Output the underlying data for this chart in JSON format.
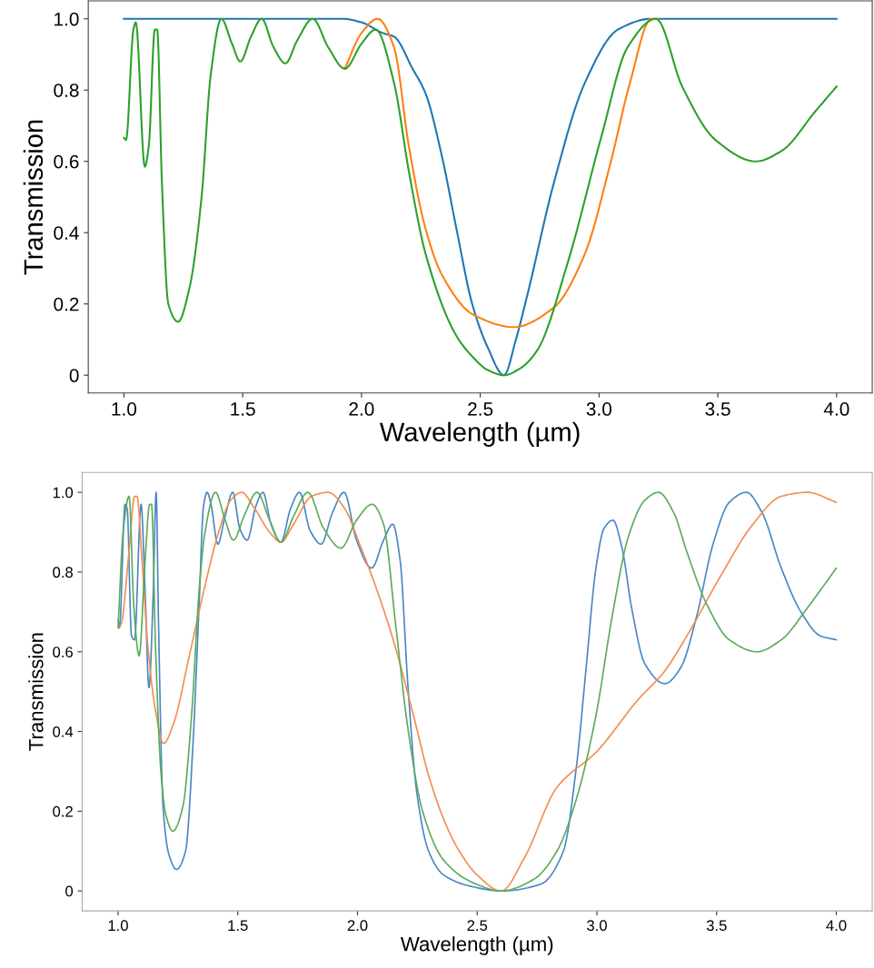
{
  "chart_data": [
    {
      "type": "line",
      "xlabel": "Wavelength (µm)",
      "ylabel": "Transmission",
      "xlim": [
        0.85,
        4.15
      ],
      "ylim": [
        -0.05,
        1.05
      ],
      "xticks": [
        {
          "value": 1,
          "label": "1.0"
        },
        1.5,
        {
          "value": 2,
          "label": "2.0"
        },
        2.5,
        {
          "value": 3,
          "label": "3.0"
        },
        3.5,
        {
          "value": 4,
          "label": "4.0"
        }
      ],
      "yticks": [
        0,
        0.2,
        0.4,
        0.6,
        0.8,
        {
          "value": 1,
          "label": "1.0"
        }
      ],
      "grid": false,
      "line_style": "solid",
      "marker": "none",
      "series": [
        {
          "color": "#1f77b4",
          "x": [
            1.0,
            1.5,
            1.92,
            2.0,
            2.09,
            2.137,
            2.215,
            2.27,
            2.34,
            2.4,
            2.466,
            2.53,
            2.6,
            2.65,
            2.7,
            2.81,
            2.94,
            3.08,
            3.22,
            3.5,
            4.0
          ],
          "values": [
            1.0,
            1.0,
            1.0,
            0.99,
            0.96,
            0.95,
            0.86,
            0.79,
            0.61,
            0.41,
            0.2,
            0.08,
            0.0,
            0.1,
            0.23,
            0.54,
            0.82,
            0.97,
            1.0,
            1.0,
            1.0
          ]
        },
        {
          "color": "#ff7f0e",
          "x": [
            1.93,
            2.0,
            2.068,
            2.137,
            2.2,
            2.27,
            2.34,
            2.47,
            2.64,
            2.81,
            2.94,
            3.05,
            3.13,
            3.22,
            3.25
          ],
          "values": [
            0.86,
            0.96,
            1.0,
            0.92,
            0.64,
            0.41,
            0.28,
            0.17,
            0.135,
            0.19,
            0.34,
            0.6,
            0.82,
            1.0,
            1.0
          ]
        },
        {
          "color": "#2ca02c",
          "x": [
            1.0,
            1.009,
            1.04,
            1.05,
            1.088,
            1.105,
            1.13,
            1.14,
            1.16,
            1.187,
            1.228,
            1.276,
            1.327,
            1.365,
            1.41,
            1.455,
            1.49,
            1.535,
            1.58,
            1.63,
            1.68,
            1.73,
            1.795,
            1.86,
            1.93,
            2.0,
            2.06,
            2.137,
            2.2,
            2.27,
            2.4,
            2.47,
            2.53,
            2.6,
            2.67,
            2.74,
            2.87,
            3.01,
            3.12,
            3.24,
            3.35,
            3.49,
            3.66,
            3.77,
            3.91,
            4.0
          ],
          "values": [
            0.666,
            0.66,
            0.97,
            0.99,
            0.585,
            0.645,
            0.97,
            0.97,
            0.54,
            0.2,
            0.15,
            0.245,
            0.5,
            0.84,
            1.0,
            0.93,
            0.88,
            0.95,
            1.0,
            0.92,
            0.875,
            0.94,
            1.0,
            0.92,
            0.86,
            0.93,
            0.97,
            0.82,
            0.57,
            0.34,
            0.11,
            0.05,
            0.015,
            0.0,
            0.02,
            0.07,
            0.32,
            0.67,
            0.92,
            1.0,
            0.81,
            0.66,
            0.6,
            0.63,
            0.74,
            0.81
          ]
        }
      ]
    },
    {
      "type": "line",
      "xlabel": "Wavelength (µm)",
      "ylabel": "Transmission",
      "xlim": [
        0.85,
        4.15
      ],
      "ylim": [
        -0.05,
        1.05
      ],
      "xticks": [
        {
          "value": 1,
          "label": "1.0"
        },
        1.5,
        {
          "value": 2,
          "label": "2.0"
        },
        2.5,
        {
          "value": 3,
          "label": "3.0"
        },
        3.5,
        {
          "value": 4,
          "label": "4.0"
        }
      ],
      "yticks": [
        0,
        0.2,
        0.4,
        0.6,
        0.8,
        {
          "value": 1,
          "label": "1.0"
        }
      ],
      "grid": false,
      "line_style": "solid",
      "marker": "none",
      "series": [
        {
          "color": "#4a87c4",
          "x": [
            1.0,
            1.006,
            1.029,
            1.038,
            1.056,
            1.069,
            1.096,
            1.113,
            1.129,
            1.147,
            1.159,
            1.169,
            1.188,
            1.213,
            1.244,
            1.282,
            1.313,
            1.338,
            1.357,
            1.372,
            1.388,
            1.417,
            1.445,
            1.479,
            1.508,
            1.539,
            1.576,
            1.605,
            1.639,
            1.68,
            1.72,
            1.758,
            1.802,
            1.848,
            1.896,
            1.944,
            1.996,
            2.059,
            2.109,
            2.147,
            2.178,
            2.21,
            2.247,
            2.297,
            2.36,
            2.485,
            2.6,
            2.765,
            2.86,
            2.914,
            2.955,
            2.996,
            3.03,
            3.067,
            3.105,
            3.145,
            3.2,
            3.284,
            3.35,
            3.417,
            3.485,
            3.553,
            3.624,
            3.689,
            3.77,
            3.852,
            3.933,
            4.0
          ],
          "values": [
            0.68,
            0.66,
            0.97,
            0.96,
            0.64,
            0.63,
            0.97,
            0.75,
            0.51,
            0.75,
            1.0,
            0.67,
            0.21,
            0.09,
            0.054,
            0.1,
            0.37,
            0.71,
            0.966,
            1.0,
            0.97,
            0.87,
            0.935,
            1.0,
            0.91,
            0.88,
            0.966,
            1.0,
            0.92,
            0.875,
            0.958,
            1.0,
            0.904,
            0.87,
            0.95,
            1.0,
            0.88,
            0.81,
            0.88,
            0.92,
            0.83,
            0.52,
            0.25,
            0.1,
            0.04,
            0.01,
            0.0,
            0.017,
            0.1,
            0.31,
            0.56,
            0.81,
            0.91,
            0.93,
            0.86,
            0.71,
            0.57,
            0.52,
            0.56,
            0.69,
            0.87,
            0.975,
            1.0,
            0.95,
            0.81,
            0.7,
            0.64,
            0.63
          ]
        },
        {
          "color": "#f28e52",
          "x": [
            1.0,
            1.013,
            1.044,
            1.069,
            1.079,
            1.1,
            1.125,
            1.157,
            1.19,
            1.232,
            1.294,
            1.357,
            1.42,
            1.47,
            1.516,
            1.57,
            1.633,
            1.68,
            1.733,
            1.808,
            1.877,
            1.946,
            2.009,
            2.084,
            2.154,
            2.234,
            2.297,
            2.36,
            2.425,
            2.5,
            2.6,
            2.697,
            2.833,
            3.0,
            3.172,
            3.281,
            3.376,
            3.512,
            3.648,
            3.77,
            3.879,
            4.0
          ],
          "values": [
            0.66,
            0.67,
            0.84,
            0.99,
            0.99,
            0.83,
            0.61,
            0.45,
            0.37,
            0.42,
            0.58,
            0.75,
            0.9,
            0.98,
            1.0,
            0.96,
            0.9,
            0.875,
            0.92,
            0.99,
            1.0,
            0.96,
            0.87,
            0.75,
            0.62,
            0.44,
            0.29,
            0.18,
            0.1,
            0.04,
            0.0,
            0.083,
            0.26,
            0.35,
            0.48,
            0.55,
            0.64,
            0.785,
            0.917,
            0.99,
            1.0,
            0.975
          ]
        },
        {
          "color": "#5cab5c",
          "x": [
            1.0,
            1.021,
            1.046,
            1.066,
            1.088,
            1.113,
            1.132,
            1.14,
            1.157,
            1.18,
            1.2,
            1.229,
            1.27,
            1.307,
            1.338,
            1.363,
            1.407,
            1.445,
            1.482,
            1.526,
            1.58,
            1.633,
            1.68,
            1.733,
            1.793,
            1.858,
            1.931,
            1.996,
            2.061,
            2.109,
            2.159,
            2.21,
            2.272,
            2.36,
            2.485,
            2.6,
            2.738,
            2.833,
            2.914,
            2.996,
            3.064,
            3.132,
            3.2,
            3.257,
            3.32,
            3.376,
            3.458,
            3.553,
            3.668,
            3.77,
            3.879,
            4.0
          ],
          "values": [
            0.66,
            0.9,
            0.99,
            0.71,
            0.59,
            0.83,
            0.97,
            0.97,
            0.6,
            0.29,
            0.19,
            0.15,
            0.21,
            0.44,
            0.75,
            0.9,
            1.0,
            0.935,
            0.88,
            0.94,
            1.0,
            0.93,
            0.875,
            0.94,
            1.0,
            0.91,
            0.86,
            0.93,
            0.97,
            0.92,
            0.67,
            0.41,
            0.2,
            0.077,
            0.02,
            0.0,
            0.03,
            0.1,
            0.23,
            0.44,
            0.69,
            0.89,
            0.98,
            1.0,
            0.95,
            0.85,
            0.72,
            0.63,
            0.6,
            0.63,
            0.71,
            0.81
          ]
        }
      ]
    }
  ]
}
